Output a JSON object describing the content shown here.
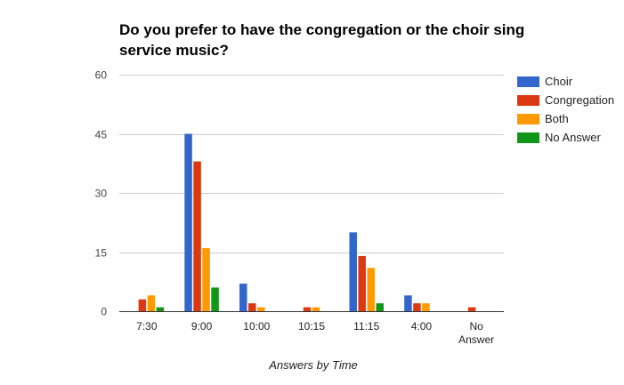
{
  "chart_data": {
    "type": "bar",
    "title": "Do you prefer to have the congregation or the choir sing service music?",
    "xlabel": "Answers by Time",
    "ylabel": "",
    "ylim": [
      0,
      60
    ],
    "yticks": [
      "0",
      "15",
      "30",
      "45",
      "60"
    ],
    "grid": true,
    "legend_position": "right",
    "categories": [
      "7:30",
      "9:00",
      "10:00",
      "10:15",
      "11:15",
      "4:00",
      "No Answer"
    ],
    "series": [
      {
        "name": "Choir",
        "color": "#3366cc",
        "values": [
          0,
          45,
          7,
          0,
          20,
          4,
          0
        ]
      },
      {
        "name": "Congregation",
        "color": "#dc3912",
        "values": [
          3,
          38,
          2,
          1,
          14,
          2,
          1
        ]
      },
      {
        "name": "Both",
        "color": "#ff9900",
        "values": [
          4,
          16,
          1,
          1,
          11,
          2,
          0
        ]
      },
      {
        "name": "No Answer",
        "color": "#109618",
        "values": [
          1,
          6,
          0,
          0,
          2,
          0,
          0
        ]
      }
    ]
  }
}
